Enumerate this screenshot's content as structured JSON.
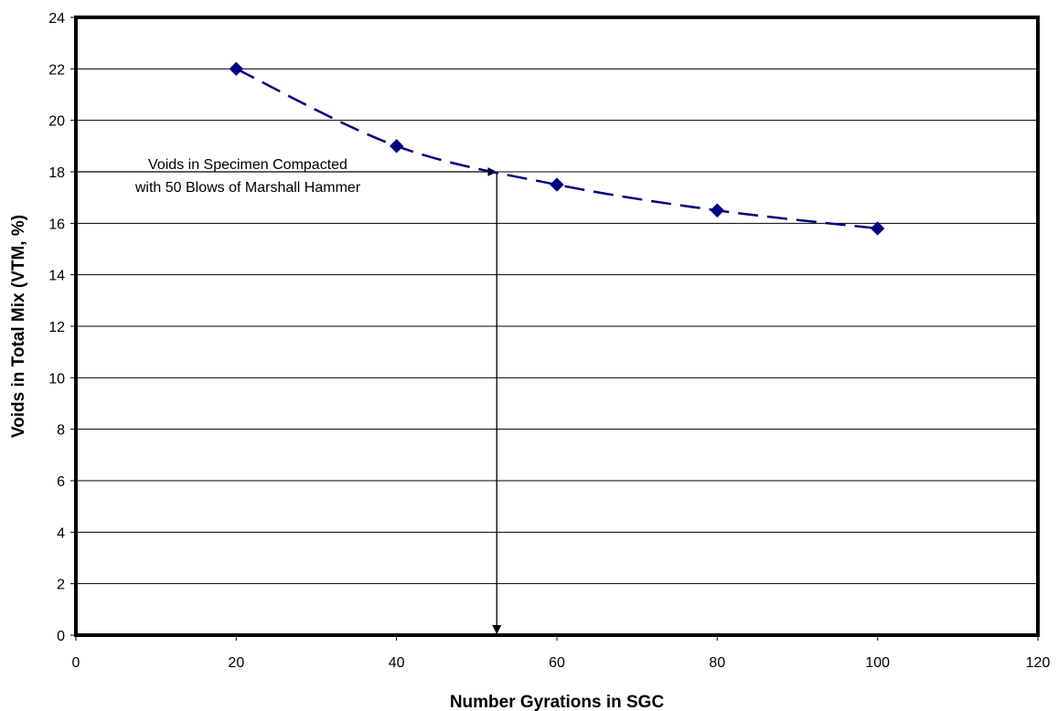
{
  "chart_data": {
    "type": "line",
    "title": "",
    "xlabel": "Number Gyrations in SGC",
    "ylabel": "Voids in Total Mix (VTM, %)",
    "xlim": [
      0,
      120
    ],
    "ylim": [
      0,
      24
    ],
    "x_ticks": [
      0,
      20,
      40,
      60,
      80,
      100,
      120
    ],
    "y_ticks": [
      0,
      2,
      4,
      6,
      8,
      10,
      12,
      14,
      16,
      18,
      20,
      22,
      24
    ],
    "grid": "horizontal",
    "legend": "none",
    "series": [
      {
        "x": [
          20,
          40,
          60,
          80,
          100
        ],
        "y": [
          22.0,
          19.0,
          17.5,
          16.5,
          15.8
        ],
        "color": "#000080",
        "line_style": "dashed",
        "marker": "diamond"
      }
    ],
    "annotation": {
      "lines": [
        "Voids in Specimen Compacted",
        "with 50 Blows of Marshall Hammer"
      ],
      "arrow_y": 18,
      "arrow_x": 52.5
    }
  }
}
